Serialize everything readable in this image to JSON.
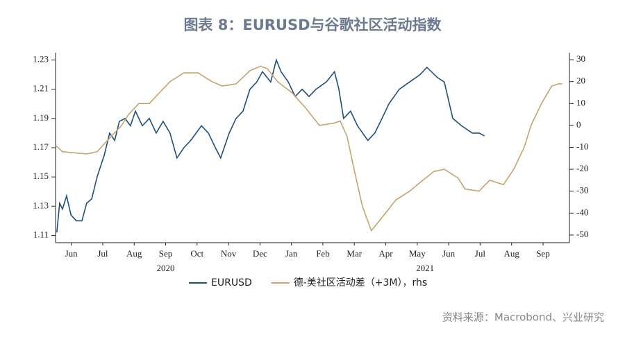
{
  "chart_data": {
    "type": "line",
    "title": "图表 8：EURUSD与谷歌社区活动指数",
    "source": "资料来源：Macrobond、兴业研究",
    "xlim": [
      0,
      16.34
    ],
    "xticks": [
      {
        "value": 0.5,
        "label": "Jun"
      },
      {
        "value": 1.5,
        "label": "Jul"
      },
      {
        "value": 2.5,
        "label": "Aug"
      },
      {
        "value": 3.5,
        "label": "Sep"
      },
      {
        "value": 4.5,
        "label": "Oct"
      },
      {
        "value": 5.5,
        "label": "Nov"
      },
      {
        "value": 6.5,
        "label": "Dec"
      },
      {
        "value": 7.5,
        "label": "Jan"
      },
      {
        "value": 8.5,
        "label": "Feb"
      },
      {
        "value": 9.5,
        "label": "Mar"
      },
      {
        "value": 10.5,
        "label": "Apr"
      },
      {
        "value": 11.5,
        "label": "May"
      },
      {
        "value": 12.5,
        "label": "Jun"
      },
      {
        "value": 13.5,
        "label": "Jul"
      },
      {
        "value": 14.5,
        "label": "Aug"
      },
      {
        "value": 15.5,
        "label": "Sep"
      }
    ],
    "x_group_labels": [
      {
        "value": 3.5,
        "label": "2020"
      },
      {
        "value": 11.75,
        "label": "2021"
      }
    ],
    "ylim": [
      1.105,
      1.235
    ],
    "yticks": [
      1.11,
      1.13,
      1.15,
      1.17,
      1.19,
      1.21,
      1.23
    ],
    "y2lim": [
      -53.5,
      33.2
    ],
    "y2ticks": [
      -50,
      -40,
      -30,
      -20,
      -10,
      0,
      10,
      20,
      30
    ],
    "series": [
      {
        "name": "EURUSD",
        "color": "#1f4e79",
        "x": [
          0.04,
          0.13,
          0.22,
          0.35,
          0.49,
          0.66,
          0.84,
          0.99,
          1.15,
          1.32,
          1.55,
          1.72,
          1.88,
          2.03,
          2.21,
          2.38,
          2.54,
          2.76,
          2.98,
          3.2,
          3.42,
          3.64,
          3.86,
          4.08,
          4.3,
          4.64,
          4.86,
          5.08,
          5.25,
          5.52,
          5.74,
          5.96,
          6.18,
          6.4,
          6.58,
          6.84,
          7.02,
          7.17,
          7.4,
          7.62,
          7.84,
          8.06,
          8.28,
          8.61,
          8.87,
          9.01,
          9.16,
          9.38,
          9.6,
          9.93,
          10.15,
          10.38,
          10.6,
          10.93,
          11.26,
          11.59,
          11.81,
          12.14,
          12.36,
          12.63,
          12.91,
          13.25,
          13.47,
          13.64
        ],
        "values": [
          1.112,
          1.132,
          1.128,
          1.137,
          1.124,
          1.12,
          1.12,
          1.132,
          1.135,
          1.15,
          1.165,
          1.18,
          1.175,
          1.188,
          1.19,
          1.185,
          1.195,
          1.185,
          1.19,
          1.18,
          1.188,
          1.18,
          1.163,
          1.17,
          1.175,
          1.185,
          1.18,
          1.17,
          1.163,
          1.18,
          1.19,
          1.195,
          1.21,
          1.215,
          1.222,
          1.215,
          1.23,
          1.222,
          1.215,
          1.205,
          1.21,
          1.205,
          1.21,
          1.215,
          1.222,
          1.21,
          1.19,
          1.195,
          1.185,
          1.175,
          1.18,
          1.19,
          1.2,
          1.21,
          1.215,
          1.22,
          1.225,
          1.218,
          1.215,
          1.19,
          1.185,
          1.18,
          1.18,
          1.178
        ]
      },
      {
        "name": "德-美社区活动差（+3M），rhs",
        "color": "#c4a46b",
        "axis": "y2",
        "x": [
          0,
          0.22,
          0.99,
          1.32,
          1.77,
          2.1,
          2.32,
          2.65,
          2.98,
          3.31,
          3.64,
          4.08,
          4.53,
          4.97,
          5.3,
          5.74,
          6.18,
          6.51,
          6.73,
          7.06,
          7.51,
          7.95,
          8.39,
          8.83,
          9.05,
          9.27,
          9.49,
          9.76,
          10.04,
          10.38,
          10.82,
          11.26,
          11.59,
          12.03,
          12.36,
          12.8,
          13.02,
          13.47,
          13.8,
          14.24,
          14.57,
          14.9,
          15.12,
          15.45,
          15.78,
          16,
          16.11
        ],
        "values": [
          -9,
          -12,
          -13,
          -12,
          -5,
          0,
          5,
          10,
          10,
          15,
          20,
          24,
          24,
          20,
          18,
          19,
          25,
          27,
          26,
          20,
          15,
          8,
          0,
          1,
          2,
          -5,
          -20,
          -37,
          -48,
          -42,
          -34,
          -30,
          -26,
          -21,
          -20,
          -24,
          -29,
          -30,
          -25,
          -27,
          -20,
          -10,
          0,
          10,
          18,
          19,
          19
        ]
      }
    ]
  }
}
